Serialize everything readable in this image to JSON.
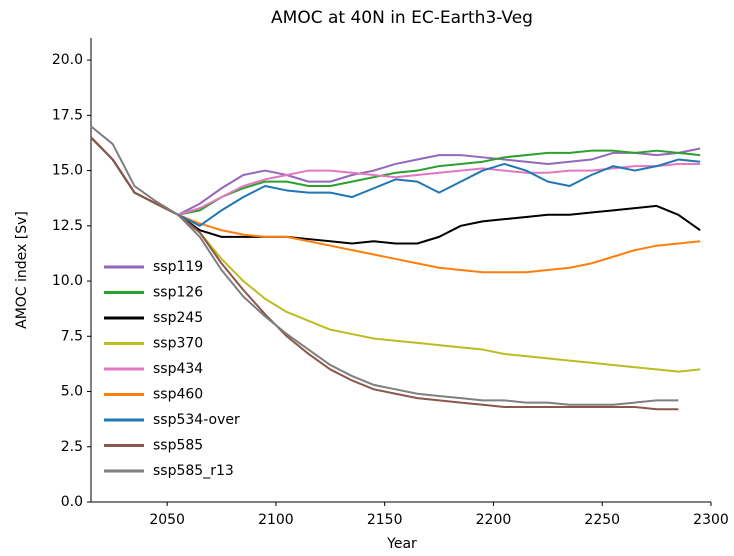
{
  "chart_data": {
    "type": "line",
    "title": "AMOC at 40N in EC-Earth3-Veg",
    "x_label": "Year",
    "y_label": "AMOC index [Sv]",
    "x": [
      2015,
      2025,
      2035,
      2045,
      2055,
      2065,
      2075,
      2085,
      2095,
      2105,
      2115,
      2125,
      2135,
      2145,
      2155,
      2165,
      2175,
      2185,
      2195,
      2205,
      2215,
      2225,
      2235,
      2245,
      2255,
      2265,
      2275,
      2285,
      2295
    ],
    "xlim": [
      2015,
      2300
    ],
    "xticks": [
      2050,
      2100,
      2150,
      2200,
      2250,
      2300
    ],
    "ylim": [
      0,
      21
    ],
    "yticks": [
      {
        "value": 0,
        "label": "0.0"
      },
      {
        "value": 2.5,
        "label": "2.5"
      },
      {
        "value": 5,
        "label": "5.0"
      },
      {
        "value": 7.5,
        "label": "7.5"
      },
      {
        "value": 10,
        "label": "10.0"
      },
      {
        "value": 12.5,
        "label": "12.5"
      },
      {
        "value": 15,
        "label": "15.0"
      },
      {
        "value": 17.5,
        "label": "17.5"
      },
      {
        "value": 20,
        "label": "20.0"
      }
    ],
    "legend": "center left",
    "series": [
      {
        "name": "ssp119",
        "color": "#9467bd",
        "values": [
          16.5,
          15.5,
          14.0,
          13.5,
          13.0,
          13.5,
          14.2,
          14.8,
          15.0,
          14.8,
          14.5,
          14.5,
          14.8,
          15.0,
          15.3,
          15.5,
          15.7,
          15.7,
          15.6,
          15.5,
          15.4,
          15.3,
          15.4,
          15.5,
          15.8,
          15.8,
          15.7,
          15.8,
          16.0
        ]
      },
      {
        "name": "ssp126",
        "color": "#2ca02c",
        "values": [
          16.5,
          15.5,
          14.0,
          13.5,
          13.0,
          13.2,
          13.8,
          14.2,
          14.5,
          14.5,
          14.3,
          14.3,
          14.5,
          14.7,
          14.9,
          15.0,
          15.2,
          15.3,
          15.4,
          15.6,
          15.7,
          15.8,
          15.8,
          15.9,
          15.9,
          15.8,
          15.9,
          15.8,
          15.7
        ]
      },
      {
        "name": "ssp245",
        "color": "#000000",
        "values": [
          16.5,
          15.5,
          14.0,
          13.5,
          13.0,
          12.3,
          12.0,
          12.0,
          12.0,
          12.0,
          11.9,
          11.8,
          11.7,
          11.8,
          11.7,
          11.7,
          12.0,
          12.5,
          12.7,
          12.8,
          12.9,
          13.0,
          13.0,
          13.1,
          13.2,
          13.3,
          13.4,
          13.0,
          12.3
        ]
      },
      {
        "name": "ssp370",
        "color": "#bcbd22",
        "values": [
          16.5,
          15.5,
          14.0,
          13.5,
          13.0,
          12.2,
          11.0,
          10.0,
          9.2,
          8.6,
          8.2,
          7.8,
          7.6,
          7.4,
          7.3,
          7.2,
          7.1,
          7.0,
          6.9,
          6.7,
          6.6,
          6.5,
          6.4,
          6.3,
          6.2,
          6.1,
          6.0,
          5.9,
          6.0
        ]
      },
      {
        "name": "ssp434",
        "color": "#e377c2",
        "values": [
          16.5,
          15.5,
          14.0,
          13.5,
          13.0,
          13.3,
          13.8,
          14.3,
          14.6,
          14.8,
          15.0,
          15.0,
          14.9,
          14.8,
          14.7,
          14.8,
          14.9,
          15.0,
          15.1,
          15.0,
          14.9,
          14.9,
          15.0,
          15.0,
          15.1,
          15.2,
          15.2,
          15.3,
          15.3
        ]
      },
      {
        "name": "ssp460",
        "color": "#ff7f0e",
        "values": [
          16.5,
          15.5,
          14.0,
          13.5,
          13.0,
          12.6,
          12.3,
          12.1,
          12.0,
          12.0,
          11.8,
          11.6,
          11.4,
          11.2,
          11.0,
          10.8,
          10.6,
          10.5,
          10.4,
          10.4,
          10.4,
          10.5,
          10.6,
          10.8,
          11.1,
          11.4,
          11.6,
          11.7,
          11.8
        ]
      },
      {
        "name": "ssp534-over",
        "color": "#1f77b4",
        "values": [
          16.5,
          15.5,
          14.0,
          13.5,
          13.0,
          12.5,
          13.2,
          13.8,
          14.3,
          14.1,
          14.0,
          14.0,
          13.8,
          14.2,
          14.6,
          14.5,
          14.0,
          14.5,
          15.0,
          15.3,
          15.0,
          14.5,
          14.3,
          14.8,
          15.2,
          15.0,
          15.2,
          15.5,
          15.4
        ]
      },
      {
        "name": "ssp585",
        "color": "#8c564b",
        "values": [
          16.5,
          15.5,
          14.0,
          13.5,
          13.0,
          12.2,
          10.8,
          9.6,
          8.5,
          7.5,
          6.7,
          6.0,
          5.5,
          5.1,
          4.9,
          4.7,
          4.6,
          4.5,
          4.4,
          4.3,
          4.3,
          4.3,
          4.3,
          4.3,
          4.3,
          4.3,
          4.2,
          4.2,
          null
        ]
      },
      {
        "name": "ssp585_r13",
        "color": "#7f7f7f",
        "values": [
          17.0,
          16.2,
          14.3,
          13.6,
          13.0,
          12.0,
          10.5,
          9.3,
          8.4,
          7.6,
          6.9,
          6.2,
          5.7,
          5.3,
          5.1,
          4.9,
          4.8,
          4.7,
          4.6,
          4.6,
          4.5,
          4.5,
          4.4,
          4.4,
          4.4,
          4.5,
          4.6,
          4.6,
          null
        ]
      }
    ]
  }
}
